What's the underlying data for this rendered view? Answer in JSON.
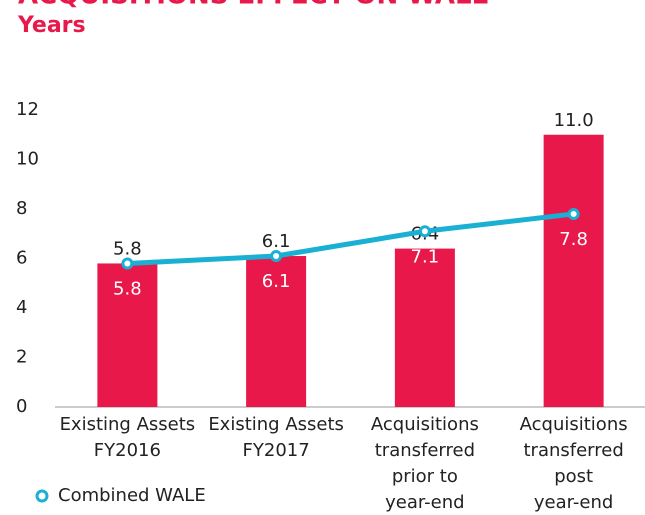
{
  "chart_data": {
    "type": "bar_line",
    "title": "ACQUISITIONS EFFECT ON WALE",
    "subtitle": "Years",
    "categories": [
      [
        "Existing Assets",
        "FY2016"
      ],
      [
        "Existing Assets",
        "FY2017"
      ],
      [
        "Acquisitions",
        "transferred",
        "prior to",
        "year-end"
      ],
      [
        "Acquisitions",
        "transferred",
        "post",
        "year-end"
      ]
    ],
    "series": [
      {
        "type": "bar",
        "color": "#e8184a",
        "values": [
          5.8,
          6.1,
          6.4,
          11.0
        ],
        "value_labels": [
          "5.8",
          "6.1",
          "6.4",
          "11.0"
        ]
      },
      {
        "type": "line",
        "name": "Combined WALE",
        "color": "#1ab0d4",
        "values": [
          5.8,
          6.1,
          7.1,
          7.8
        ]
      }
    ],
    "ylim": [
      0,
      12
    ],
    "yticks": [
      0,
      2,
      4,
      6,
      8,
      10,
      12
    ],
    "grid": false,
    "legend": "bottom-left"
  }
}
